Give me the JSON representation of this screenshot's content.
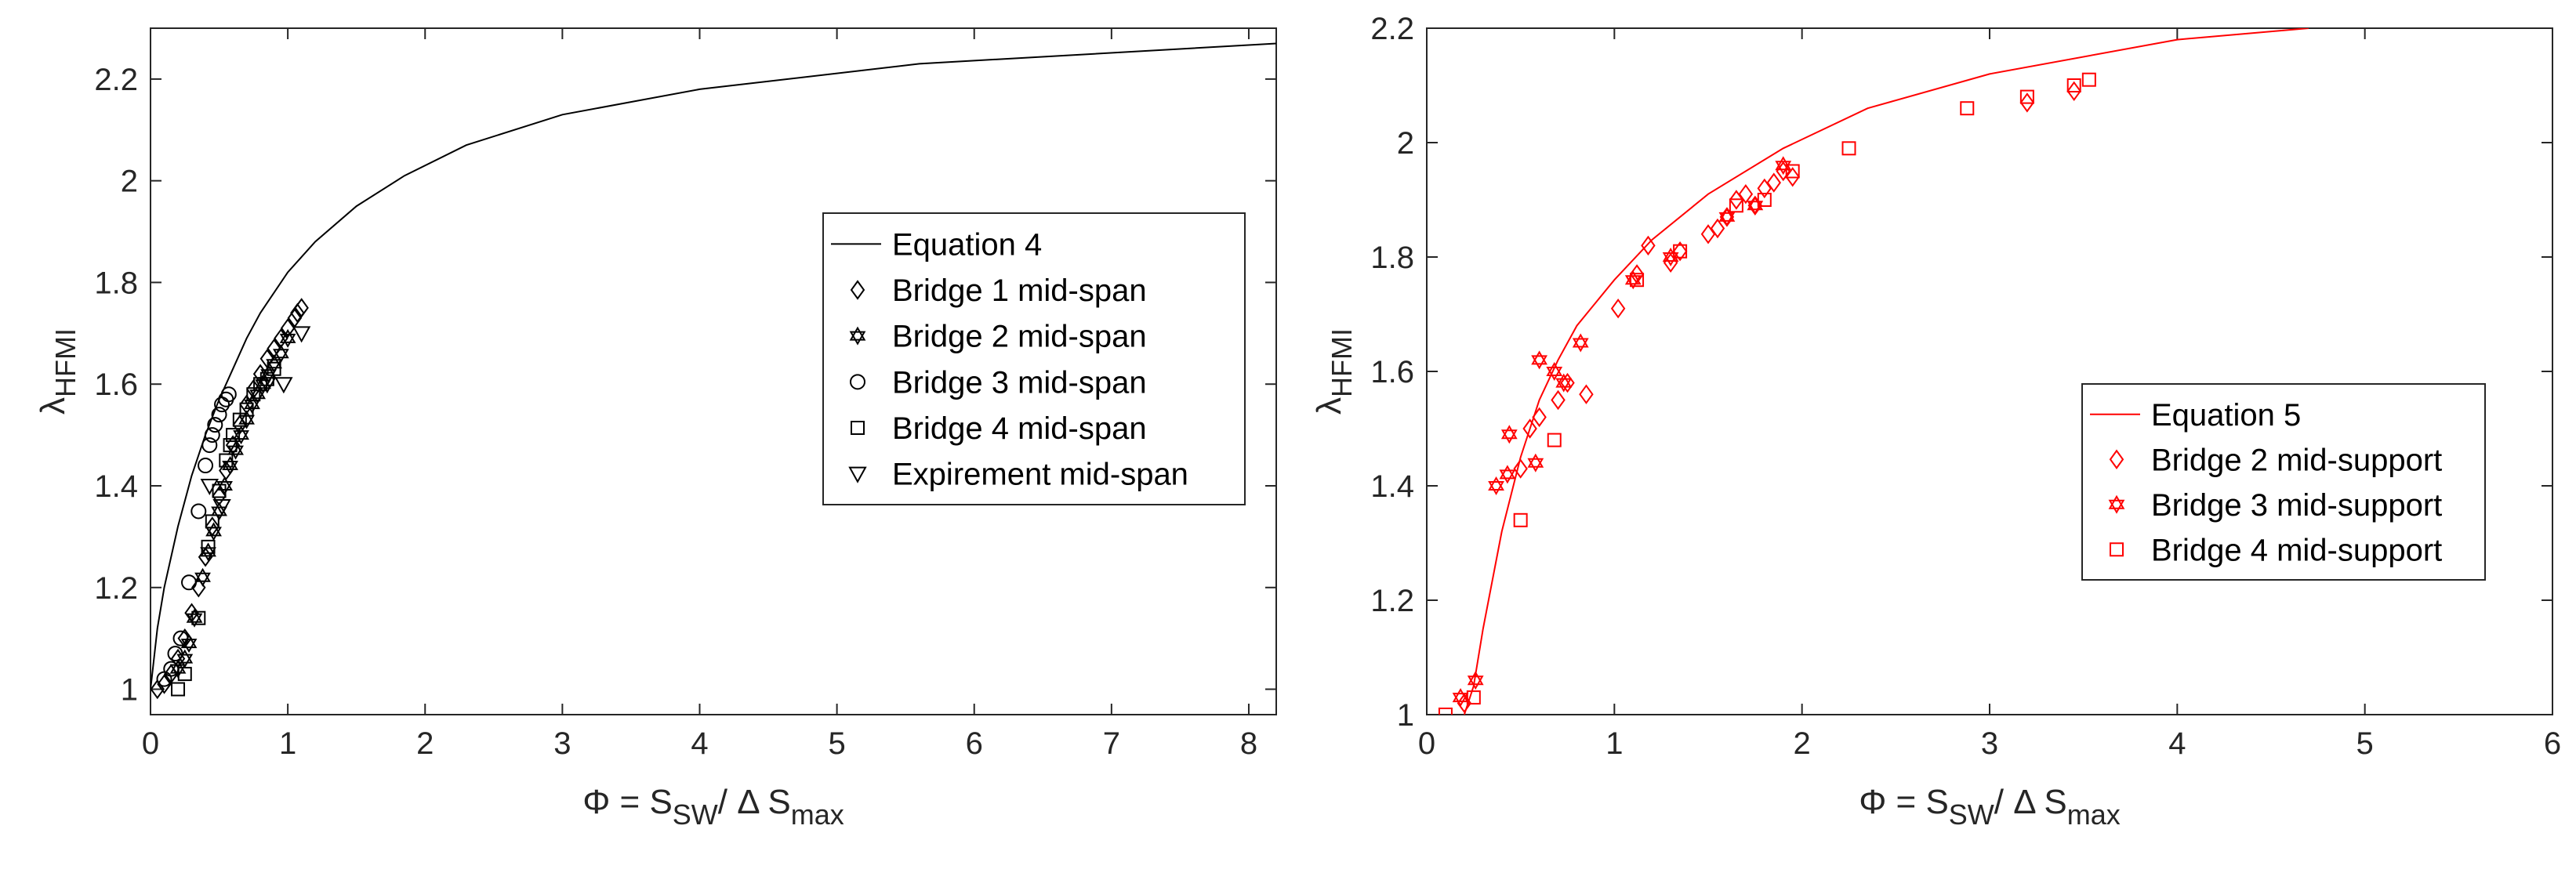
{
  "chart_data": [
    {
      "type": "scatter",
      "xlim": [
        0,
        8.2
      ],
      "ylim": [
        0.95,
        2.3
      ],
      "xticks": [
        0,
        1,
        2,
        3,
        4,
        5,
        6,
        7,
        8
      ],
      "yticks": [
        1,
        1.2,
        1.4,
        1.6,
        1.8,
        2,
        2.2
      ],
      "xticks_labels": [
        "0",
        "1",
        "2",
        "3",
        "4",
        "5",
        "6",
        "7",
        "8"
      ],
      "yticks_labels": [
        "1",
        "1.2",
        "1.4",
        "1.6",
        "1.8",
        "2",
        "2.2"
      ],
      "xlabel": {
        "main": "Φ = S",
        "sub1": "SW",
        "mid": "/ Δ S",
        "sub2": "max"
      },
      "ylabel": {
        "main": "λ",
        "sub": "HFMI"
      },
      "grid": false,
      "legend_position": "right",
      "line_color": "#000000",
      "series": [
        {
          "name": "Equation 4",
          "kind": "line",
          "x": [
            0,
            0.05,
            0.1,
            0.2,
            0.3,
            0.4,
            0.5,
            0.6,
            0.7,
            0.8,
            0.9,
            1.0,
            1.2,
            1.5,
            1.85,
            2.3,
            3.0,
            4.0,
            5.6,
            8.2
          ],
          "y": [
            1.0,
            1.12,
            1.2,
            1.32,
            1.42,
            1.5,
            1.57,
            1.63,
            1.69,
            1.74,
            1.78,
            1.82,
            1.88,
            1.95,
            2.01,
            2.07,
            2.13,
            2.18,
            2.23,
            2.27
          ]
        },
        {
          "name": "Bridge 1 mid-span",
          "kind": "marker",
          "marker": "diamond",
          "x": [
            0.05,
            0.1,
            0.15,
            0.2,
            0.25,
            0.3,
            0.35,
            0.4,
            0.45,
            0.5,
            0.55,
            0.6,
            0.65,
            0.7,
            0.75,
            0.8,
            0.85,
            0.9,
            0.95,
            1.0,
            1.05,
            1.07,
            1.1
          ],
          "y": [
            1.0,
            1.01,
            1.03,
            1.06,
            1.1,
            1.15,
            1.2,
            1.26,
            1.32,
            1.38,
            1.43,
            1.48,
            1.52,
            1.56,
            1.59,
            1.62,
            1.65,
            1.67,
            1.69,
            1.71,
            1.73,
            1.74,
            1.75
          ]
        },
        {
          "name": "Bridge 2 mid-span",
          "kind": "marker",
          "marker": "star",
          "x": [
            0.2,
            0.25,
            0.28,
            0.32,
            0.38,
            0.42,
            0.46,
            0.5,
            0.54,
            0.58,
            0.62,
            0.66,
            0.7,
            0.74,
            0.78,
            0.82,
            0.86,
            0.9,
            0.95,
            1.0
          ],
          "y": [
            1.04,
            1.06,
            1.09,
            1.14,
            1.22,
            1.27,
            1.31,
            1.35,
            1.4,
            1.44,
            1.47,
            1.5,
            1.53,
            1.56,
            1.58,
            1.6,
            1.62,
            1.64,
            1.66,
            1.69
          ]
        },
        {
          "name": "Bridge 3 mid-span",
          "kind": "marker",
          "marker": "circle",
          "x": [
            0.1,
            0.15,
            0.18,
            0.22,
            0.28,
            0.35,
            0.4,
            0.43,
            0.45,
            0.47,
            0.5,
            0.52,
            0.55,
            0.57
          ],
          "y": [
            1.02,
            1.04,
            1.07,
            1.1,
            1.21,
            1.35,
            1.44,
            1.48,
            1.5,
            1.52,
            1.54,
            1.56,
            1.57,
            1.58
          ]
        },
        {
          "name": "Bridge 4 mid-span",
          "kind": "marker",
          "marker": "square",
          "x": [
            0.2,
            0.25,
            0.35,
            0.42,
            0.45,
            0.5,
            0.55,
            0.58,
            0.6,
            0.65,
            0.7,
            0.75,
            0.8,
            0.85,
            0.9
          ],
          "y": [
            1.0,
            1.03,
            1.14,
            1.28,
            1.33,
            1.39,
            1.45,
            1.48,
            1.5,
            1.53,
            1.55,
            1.58,
            1.6,
            1.61,
            1.63
          ]
        },
        {
          "name": "Expirement mid-span",
          "kind": "marker",
          "marker": "triangle-down",
          "x": [
            0.43,
            0.52,
            0.85,
            0.97,
            1.1
          ],
          "y": [
            1.4,
            1.36,
            1.6,
            1.6,
            1.7
          ]
        }
      ]
    },
    {
      "type": "scatter",
      "xlim": [
        0,
        6
      ],
      "ylim": [
        1,
        2.2
      ],
      "xticks": [
        0,
        1,
        2,
        3,
        4,
        5,
        6
      ],
      "yticks": [
        1,
        1.2,
        1.4,
        1.6,
        1.8,
        2,
        2.2
      ],
      "xticks_labels": [
        "0",
        "1",
        "2",
        "3",
        "4",
        "5",
        "6"
      ],
      "yticks_labels": [
        "1",
        "1.2",
        "1.4",
        "1.6",
        "1.8",
        "2",
        "2.2"
      ],
      "xlabel": {
        "main": "Φ = S",
        "sub1": "SW",
        "mid": "/ Δ S",
        "sub2": "max"
      },
      "ylabel": {
        "main": "λ",
        "sub": "HFMI"
      },
      "grid": false,
      "legend_position": "right",
      "line_color": "#ff0000",
      "series": [
        {
          "name": "Equation 5",
          "kind": "line",
          "x": [
            0.2,
            0.25,
            0.3,
            0.4,
            0.5,
            0.6,
            0.7,
            0.8,
            1.0,
            1.2,
            1.5,
            1.9,
            2.35,
            3.0,
            4.0,
            4.7
          ],
          "y": [
            1.0,
            1.05,
            1.15,
            1.32,
            1.45,
            1.55,
            1.62,
            1.68,
            1.76,
            1.83,
            1.91,
            1.99,
            2.06,
            2.12,
            2.18,
            2.2
          ]
        },
        {
          "name": "Bridge 2 mid-support",
          "kind": "marker",
          "marker": "diamond",
          "x": [
            0.2,
            0.5,
            0.55,
            0.6,
            0.7,
            0.75,
            0.85,
            1.02,
            1.12,
            1.18,
            1.3,
            1.35,
            1.5,
            1.55,
            1.6,
            1.65,
            1.7,
            1.75,
            1.8,
            1.85,
            1.9,
            1.95,
            3.2,
            3.45
          ],
          "y": [
            1.02,
            1.43,
            1.5,
            1.52,
            1.55,
            1.58,
            1.56,
            1.71,
            1.77,
            1.82,
            1.79,
            1.81,
            1.84,
            1.85,
            1.87,
            1.9,
            1.91,
            1.89,
            1.92,
            1.93,
            1.95,
            1.94,
            2.07,
            2.09
          ]
        },
        {
          "name": "Bridge 3 mid-support",
          "kind": "marker",
          "marker": "star",
          "x": [
            0.18,
            0.26,
            0.37,
            0.43,
            0.44,
            0.58,
            0.6,
            0.68,
            0.73,
            0.82,
            1.1,
            1.3,
            1.6,
            1.75,
            1.9
          ],
          "y": [
            1.03,
            1.06,
            1.4,
            1.42,
            1.49,
            1.44,
            1.62,
            1.6,
            1.58,
            1.65,
            1.76,
            1.8,
            1.87,
            1.89,
            1.96
          ]
        },
        {
          "name": "Bridge 4 mid-support",
          "kind": "marker",
          "marker": "square",
          "x": [
            0.1,
            0.25,
            0.5,
            0.68,
            1.12,
            1.35,
            1.65,
            1.8,
            1.95,
            2.25,
            2.88,
            3.2,
            3.45,
            3.53
          ],
          "y": [
            1.0,
            1.03,
            1.34,
            1.48,
            1.76,
            1.81,
            1.89,
            1.9,
            1.95,
            1.99,
            2.06,
            2.08,
            2.1,
            2.11
          ]
        }
      ]
    }
  ]
}
